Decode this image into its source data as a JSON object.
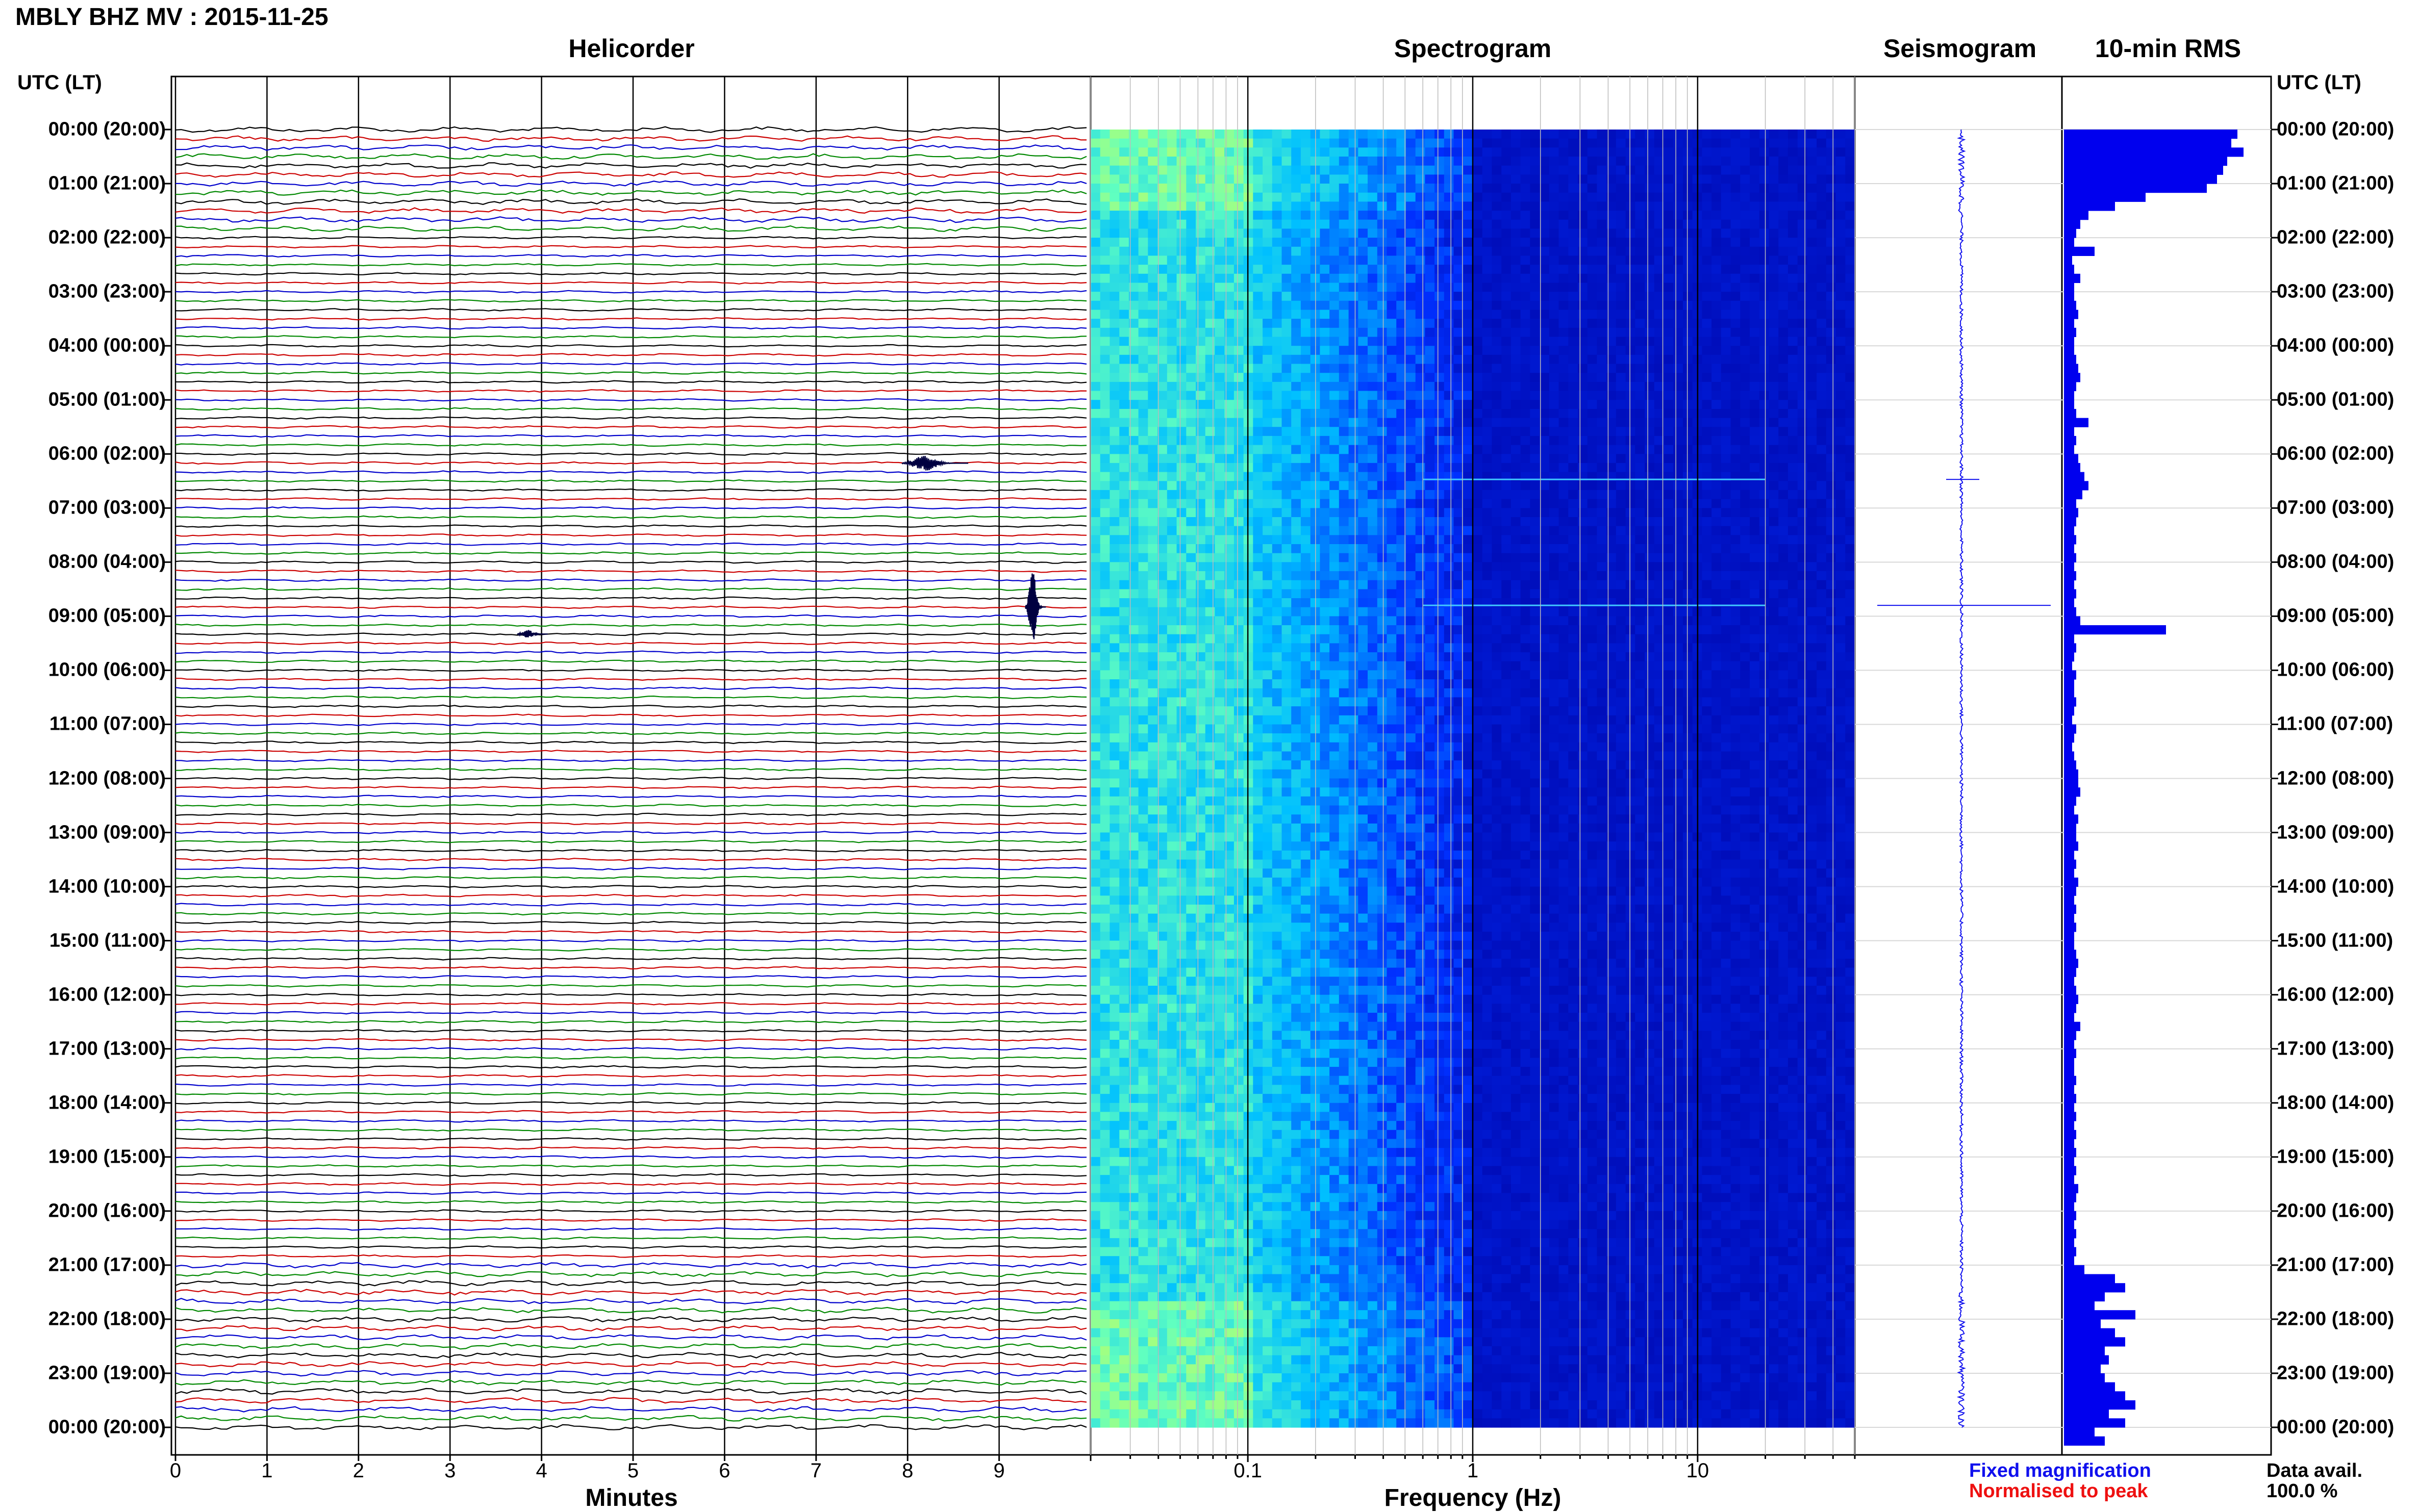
{
  "title": "MBLY BHZ MV : 2015-11-25",
  "panels": {
    "helicorder": "Helicorder",
    "spectrogram": "Spectrogram",
    "seismogram": "Seismogram",
    "rms": "10-min RMS"
  },
  "time_axis_header_left": "UTC (LT)",
  "time_axis_header_right": "UTC (LT)",
  "time_labels": [
    "00:00 (20:00)",
    "01:00 (21:00)",
    "02:00 (22:00)",
    "03:00 (23:00)",
    "04:00 (00:00)",
    "05:00 (01:00)",
    "06:00 (02:00)",
    "07:00 (03:00)",
    "08:00 (04:00)",
    "09:00 (05:00)",
    "10:00 (06:00)",
    "11:00 (07:00)",
    "12:00 (08:00)",
    "13:00 (09:00)",
    "14:00 (10:00)",
    "15:00 (11:00)",
    "16:00 (12:00)",
    "17:00 (13:00)",
    "18:00 (14:00)",
    "19:00 (15:00)",
    "20:00 (16:00)",
    "21:00 (17:00)",
    "22:00 (18:00)",
    "23:00 (19:00)",
    "00:00 (20:00)"
  ],
  "legend": {
    "fixed": "Fixed magnification",
    "normalised": "Normalised to peak",
    "fixed_color": "#1010ee",
    "normalised_color": "#ee1010"
  },
  "data_avail_label": "Data avail.",
  "data_avail_value": "100.0 %",
  "chart_data": [
    {
      "type": "line",
      "name": "helicorder",
      "title": "Helicorder",
      "xlabel": "Minutes",
      "x_ticks": [
        "0",
        "1",
        "2",
        "3",
        "4",
        "5",
        "6",
        "7",
        "8",
        "9"
      ],
      "xlim": [
        0,
        10
      ],
      "lines_per_hour": 6,
      "trace_colors": [
        "#000000",
        "#cc0000",
        "#0000cc",
        "#008800"
      ],
      "events": [
        {
          "hour": 6.17,
          "minute": 8.3,
          "amplitude": "medium"
        },
        {
          "hour": 8.83,
          "minute": 9.4,
          "amplitude": "large"
        },
        {
          "hour": 9.33,
          "minute": 3.9,
          "amplitude": "small"
        }
      ]
    },
    {
      "type": "heatmap",
      "name": "spectrogram",
      "title": "Spectrogram",
      "xlabel": "Frequency (Hz)",
      "x_scale": "log",
      "x_ticks": [
        "0.1",
        "1",
        "10"
      ],
      "xlim": [
        0.02,
        50
      ],
      "colormap": [
        "#0000a0",
        "#0030ff",
        "#00c0ff",
        "#60ffc0",
        "#e8ff40"
      ]
    },
    {
      "type": "line",
      "name": "seismogram",
      "title": "Seismogram",
      "color": "#1010ee",
      "spike_hour": 8.8
    },
    {
      "type": "bar",
      "name": "rms",
      "title": "10-min RMS",
      "color": "#0000ee",
      "bin_minutes": 10,
      "values": [
        0.85,
        0.82,
        0.88,
        0.8,
        0.78,
        0.75,
        0.7,
        0.4,
        0.25,
        0.12,
        0.08,
        0.06,
        0.05,
        0.15,
        0.04,
        0.05,
        0.08,
        0.05,
        0.05,
        0.06,
        0.07,
        0.05,
        0.06,
        0.05,
        0.05,
        0.06,
        0.07,
        0.08,
        0.06,
        0.05,
        0.05,
        0.06,
        0.12,
        0.05,
        0.06,
        0.05,
        0.07,
        0.08,
        0.1,
        0.12,
        0.09,
        0.06,
        0.07,
        0.06,
        0.05,
        0.06,
        0.05,
        0.06,
        0.05,
        0.06,
        0.05,
        0.06,
        0.05,
        0.06,
        0.08,
        0.5,
        0.05,
        0.06,
        0.05,
        0.04,
        0.06,
        0.05,
        0.05,
        0.06,
        0.05,
        0.04,
        0.06,
        0.05,
        0.04,
        0.05,
        0.06,
        0.07,
        0.07,
        0.08,
        0.06,
        0.05,
        0.07,
        0.06,
        0.06,
        0.07,
        0.05,
        0.06,
        0.05,
        0.07,
        0.06,
        0.05,
        0.06,
        0.05,
        0.06,
        0.05,
        0.05,
        0.06,
        0.07,
        0.06,
        0.05,
        0.06,
        0.07,
        0.06,
        0.05,
        0.08,
        0.06,
        0.05,
        0.06,
        0.05,
        0.05,
        0.06,
        0.05,
        0.06,
        0.05,
        0.06,
        0.05,
        0.06,
        0.05,
        0.06,
        0.05,
        0.06,
        0.05,
        0.07,
        0.06,
        0.05,
        0.06,
        0.05,
        0.06,
        0.05,
        0.06,
        0.05,
        0.1,
        0.25,
        0.3,
        0.2,
        0.15,
        0.35,
        0.18,
        0.25,
        0.3,
        0.2,
        0.22,
        0.18,
        0.2,
        0.25,
        0.3,
        0.35,
        0.22,
        0.3,
        0.15,
        0.2
      ]
    }
  ]
}
